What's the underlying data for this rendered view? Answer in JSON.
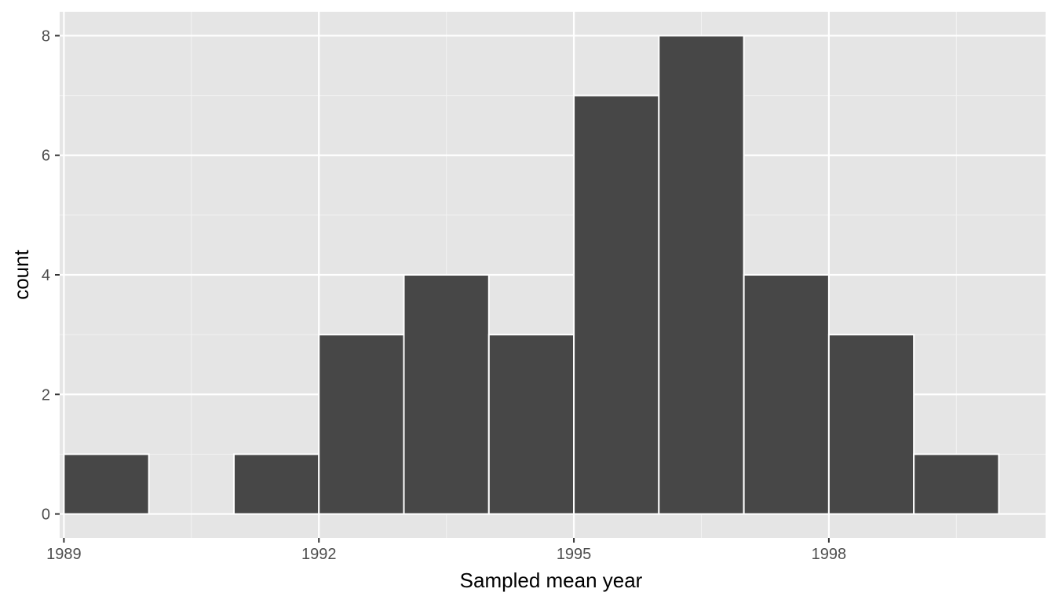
{
  "chart_data": {
    "type": "bar",
    "subtype": "histogram",
    "xlabel": "Sampled mean year",
    "ylabel": "count",
    "xlim": [
      1988.95,
      2000.55
    ],
    "ylim": [
      -0.4,
      8.4
    ],
    "x_ticks": [
      1989,
      1992,
      1995,
      1998
    ],
    "x_tick_labels": [
      "1989",
      "1992",
      "1995",
      "1998"
    ],
    "y_ticks": [
      0,
      2,
      4,
      6,
      8
    ],
    "y_tick_labels": [
      "0",
      "2",
      "4",
      "6",
      "8"
    ],
    "bin_width": 1,
    "bins": [
      {
        "x0": 1989,
        "x1": 1990,
        "count": 1
      },
      {
        "x0": 1990,
        "x1": 1991,
        "count": 0
      },
      {
        "x0": 1991,
        "x1": 1992,
        "count": 1
      },
      {
        "x0": 1992,
        "x1": 1993,
        "count": 3
      },
      {
        "x0": 1993,
        "x1": 1994,
        "count": 4
      },
      {
        "x0": 1994,
        "x1": 1995,
        "count": 3
      },
      {
        "x0": 1995,
        "x1": 1996,
        "count": 7
      },
      {
        "x0": 1996,
        "x1": 1997,
        "count": 8
      },
      {
        "x0": 1997,
        "x1": 1998,
        "count": 4
      },
      {
        "x0": 1998,
        "x1": 1999,
        "count": 3
      },
      {
        "x0": 1999,
        "x1": 2000,
        "count": 1
      }
    ],
    "grid": true,
    "legend": "none",
    "colors": {
      "bar_fill": "#474747",
      "bar_stroke": "#ffffff",
      "panel_background": "#e5e5e5",
      "grid_major": "#ffffff",
      "grid_minor": "#f2f2f2",
      "tick_text": "#4d4d4d",
      "axis_title": "#000000"
    }
  }
}
